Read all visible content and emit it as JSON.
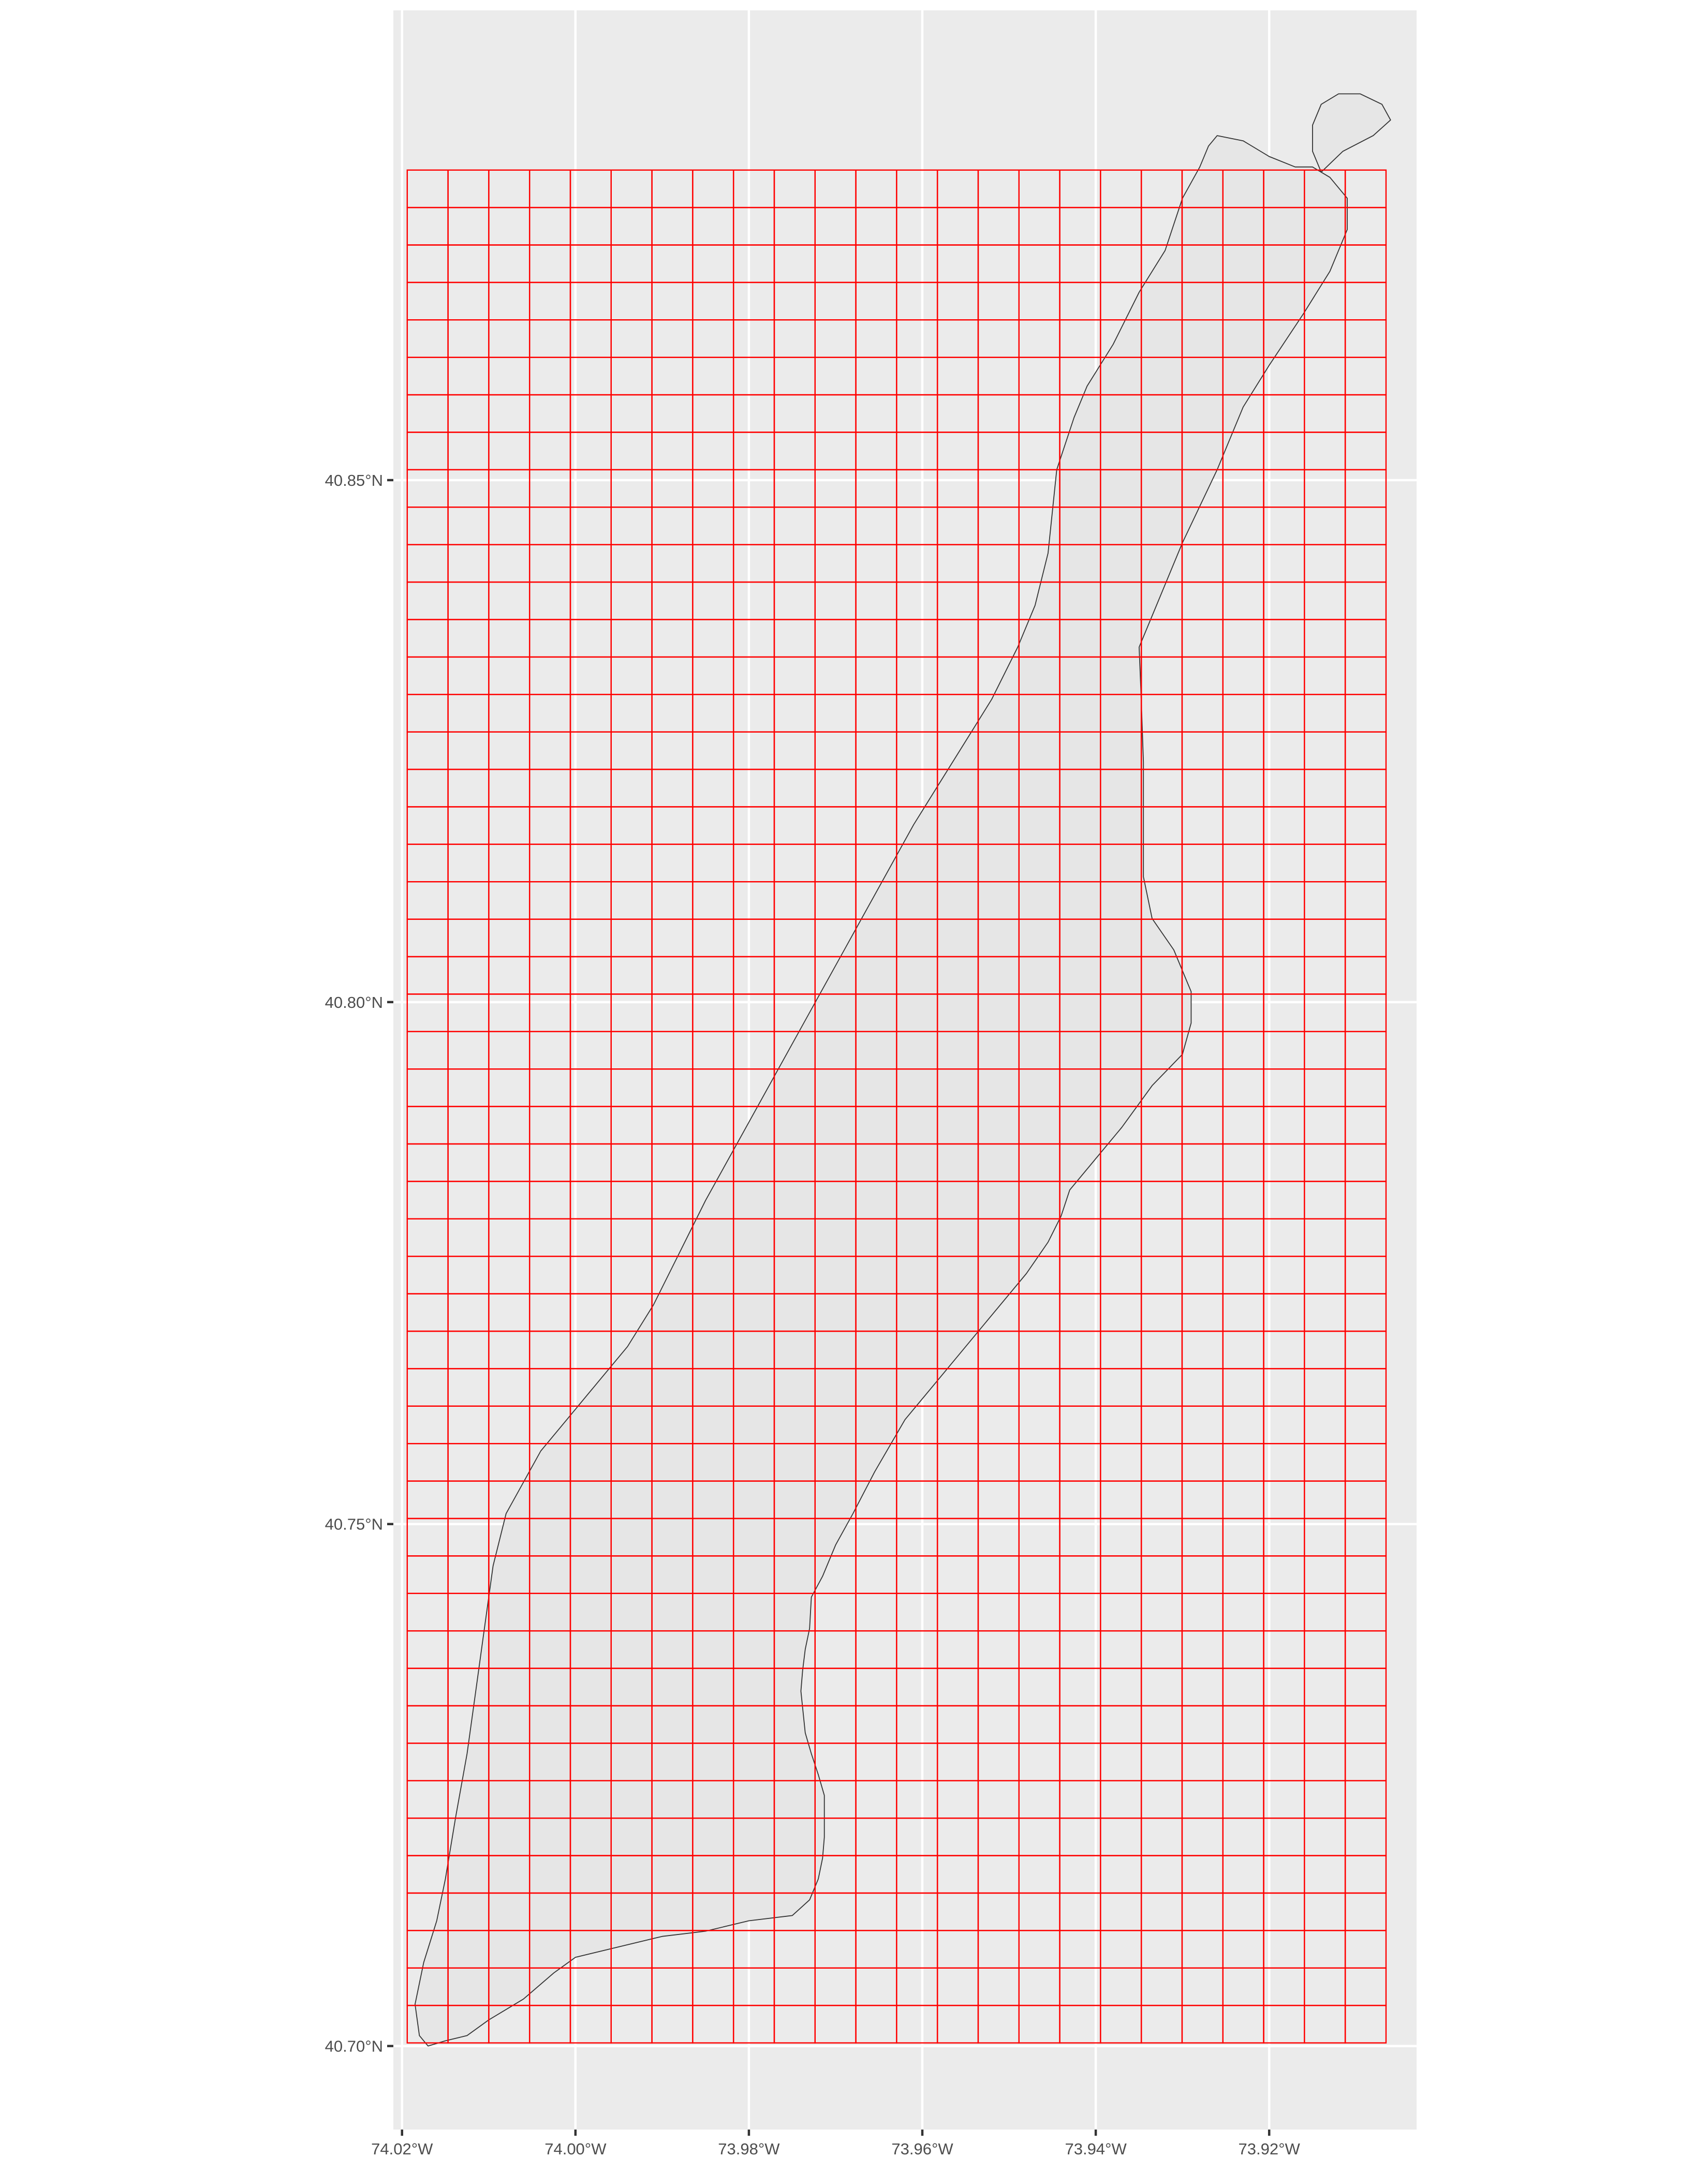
{
  "map": {
    "panel_background": "#ebebeb",
    "gridline_color": "#ffffff",
    "land_fill": "#e6e6e6",
    "land_outline": "#333333",
    "overlay_grid_color": "#ff0000",
    "lon_range": [
      -74.021,
      -73.903
    ],
    "lat_range": [
      40.692,
      40.895
    ],
    "lat_ticks": [
      {
        "value": 40.7,
        "label": "40.70°N"
      },
      {
        "value": 40.75,
        "label": "40.75°N"
      },
      {
        "value": 40.8,
        "label": "40.80°N"
      },
      {
        "value": 40.85,
        "label": "40.85°N"
      }
    ],
    "lon_ticks": [
      {
        "value": -74.02,
        "label": "74.02°W"
      },
      {
        "value": -74.0,
        "label": "74.00°W"
      },
      {
        "value": -73.98,
        "label": "73.98°W"
      },
      {
        "value": -73.96,
        "label": "73.96°W"
      },
      {
        "value": -73.94,
        "label": "73.94°W"
      },
      {
        "value": -73.92,
        "label": "73.92°W"
      }
    ],
    "overlay_grid": {
      "lon_min": -74.0194,
      "lat_min": 40.7003,
      "columns": 24,
      "rows": 50,
      "cell_lon": 0.004703,
      "cell_lat": 0.003588
    },
    "manhattan_outline": [
      [
        -74.017,
        40.7
      ],
      [
        -74.015,
        40.7005
      ],
      [
        -74.0125,
        40.701
      ],
      [
        -74.01,
        40.7025
      ],
      [
        -74.006,
        40.7045
      ],
      [
        -74.0025,
        40.707
      ],
      [
        -74.0,
        40.7085
      ],
      [
        -73.995,
        40.7095
      ],
      [
        -73.99,
        40.7105
      ],
      [
        -73.985,
        40.711
      ],
      [
        -73.98,
        40.712
      ],
      [
        -73.975,
        40.7125
      ],
      [
        -73.973,
        40.714
      ],
      [
        -73.972,
        40.716
      ],
      [
        -73.9715,
        40.718
      ],
      [
        -73.9713,
        40.72
      ],
      [
        -73.9713,
        40.724
      ],
      [
        -73.972,
        40.726
      ],
      [
        -73.9728,
        40.728
      ],
      [
        -73.9735,
        40.73
      ],
      [
        -73.974,
        40.734
      ],
      [
        -73.9738,
        40.736
      ],
      [
        -73.9735,
        40.738
      ],
      [
        -73.973,
        40.74
      ],
      [
        -73.9728,
        40.743
      ],
      [
        -73.9715,
        40.745
      ],
      [
        -73.97,
        40.748
      ],
      [
        -73.968,
        40.751
      ],
      [
        -73.9655,
        40.755
      ],
      [
        -73.962,
        40.76
      ],
      [
        -73.957,
        40.765
      ],
      [
        -73.952,
        40.77
      ],
      [
        -73.948,
        40.774
      ],
      [
        -73.9455,
        40.777
      ],
      [
        -73.944,
        40.7795
      ],
      [
        -73.943,
        40.782
      ],
      [
        -73.94,
        40.785
      ],
      [
        -73.937,
        40.788
      ],
      [
        -73.9335,
        40.792
      ],
      [
        -73.93,
        40.795
      ],
      [
        -73.929,
        40.798
      ],
      [
        -73.929,
        40.801
      ],
      [
        -73.931,
        40.805
      ],
      [
        -73.9335,
        40.808
      ],
      [
        -73.9345,
        40.812
      ],
      [
        -73.9345,
        40.816
      ],
      [
        -73.9345,
        40.823
      ],
      [
        -73.9348,
        40.83
      ],
      [
        -73.935,
        40.834
      ],
      [
        -73.933,
        40.838
      ],
      [
        -73.93,
        40.844
      ],
      [
        -73.926,
        40.851
      ],
      [
        -73.923,
        40.857
      ],
      [
        -73.92,
        40.861
      ],
      [
        -73.916,
        40.866
      ],
      [
        -73.913,
        40.87
      ],
      [
        -73.911,
        40.874
      ],
      [
        -73.911,
        40.877
      ],
      [
        -73.913,
        40.879
      ],
      [
        -73.915,
        40.88
      ],
      [
        -73.917,
        40.88
      ],
      [
        -73.92,
        40.881
      ],
      [
        -73.923,
        40.8825
      ],
      [
        -73.926,
        40.883
      ],
      [
        -73.927,
        40.882
      ],
      [
        -73.928,
        40.88
      ],
      [
        -73.93,
        40.877
      ],
      [
        -73.932,
        40.872
      ],
      [
        -73.935,
        40.868
      ],
      [
        -73.938,
        40.863
      ],
      [
        -73.941,
        40.859
      ],
      [
        -73.9425,
        40.856
      ],
      [
        -73.9445,
        40.851
      ],
      [
        -73.945,
        40.847
      ],
      [
        -73.9455,
        40.843
      ],
      [
        -73.947,
        40.838
      ],
      [
        -73.949,
        40.834
      ],
      [
        -73.952,
        40.829
      ],
      [
        -73.955,
        40.825
      ],
      [
        -73.958,
        40.821
      ],
      [
        -73.961,
        40.817
      ],
      [
        -73.965,
        40.811
      ],
      [
        -73.969,
        40.805
      ],
      [
        -73.973,
        40.799
      ],
      [
        -73.977,
        40.793
      ],
      [
        -73.981,
        40.787
      ],
      [
        -73.985,
        40.781
      ],
      [
        -73.988,
        40.776
      ],
      [
        -73.991,
        40.771
      ],
      [
        -73.994,
        40.767
      ],
      [
        -73.998,
        40.763
      ],
      [
        -74.001,
        40.76
      ],
      [
        -74.004,
        40.757
      ],
      [
        -74.006,
        40.754
      ],
      [
        -74.008,
        40.751
      ],
      [
        -74.0095,
        40.746
      ],
      [
        -74.0105,
        40.74
      ],
      [
        -74.0115,
        40.734
      ],
      [
        -74.0125,
        40.728
      ],
      [
        -74.0138,
        40.722
      ],
      [
        -74.015,
        40.716
      ],
      [
        -74.016,
        40.712
      ],
      [
        -74.0175,
        40.708
      ],
      [
        -74.0185,
        40.704
      ],
      [
        -74.018,
        40.701
      ],
      [
        -74.017,
        40.7
      ]
    ],
    "marble_hill_outline": [
      [
        -73.914,
        40.8795
      ],
      [
        -73.9115,
        40.8815
      ],
      [
        -73.908,
        40.883
      ],
      [
        -73.906,
        40.8845
      ],
      [
        -73.907,
        40.886
      ],
      [
        -73.9095,
        40.887
      ],
      [
        -73.912,
        40.887
      ],
      [
        -73.914,
        40.886
      ],
      [
        -73.915,
        40.884
      ],
      [
        -73.915,
        40.8815
      ],
      [
        -73.914,
        40.8795
      ]
    ]
  }
}
